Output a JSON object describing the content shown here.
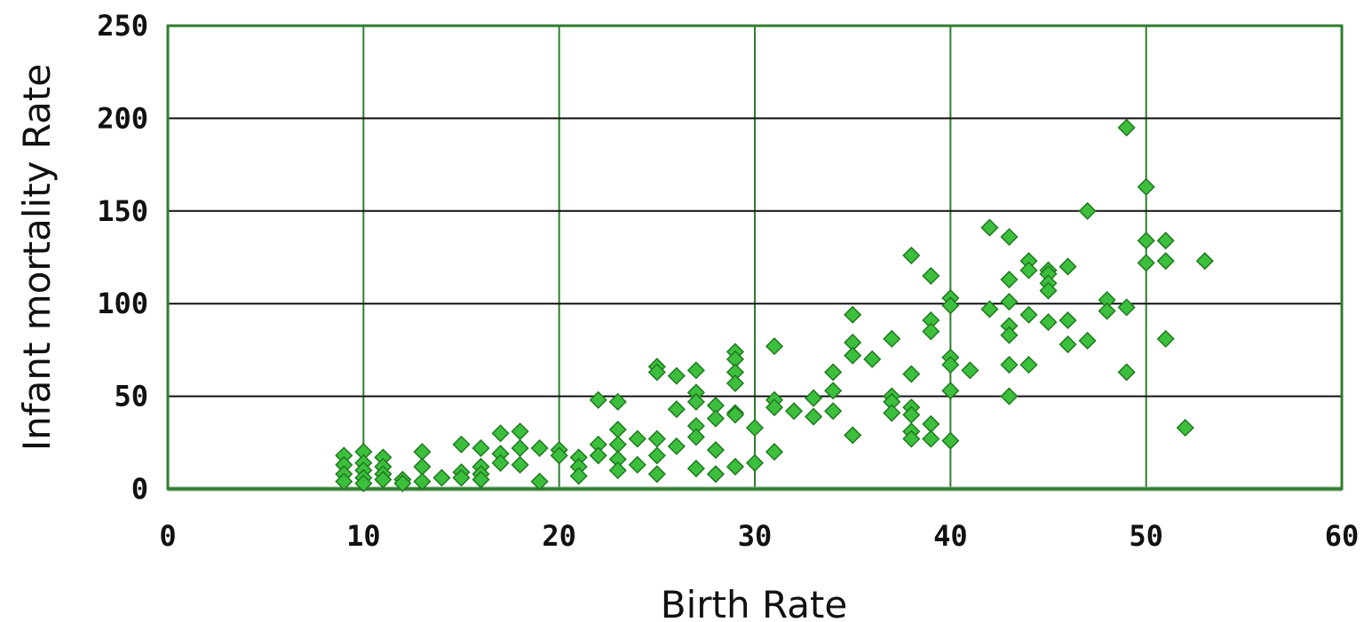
{
  "chart_data": {
    "type": "scatter",
    "title": "",
    "xlabel": "Birth Rate",
    "ylabel": "Infant mortality Rate",
    "xlim": [
      0,
      60
    ],
    "ylim": [
      0,
      250
    ],
    "x_ticks": [
      0,
      10,
      20,
      30,
      40,
      50,
      60
    ],
    "y_ticks": [
      0,
      50,
      100,
      150,
      200,
      250
    ],
    "grid": true,
    "legend": "none",
    "colors": {
      "marker_fill": "#3cbf3c",
      "marker_stroke": "#1f7a1f",
      "grid_vertical": "#2e7d2e",
      "grid_horizontal": "#111111",
      "frame": "#2e7d2e"
    },
    "series": [
      {
        "points": [
          [
            9,
            18
          ],
          [
            9,
            13
          ],
          [
            9,
            8
          ],
          [
            9,
            4
          ],
          [
            10,
            20
          ],
          [
            10,
            14
          ],
          [
            10,
            10
          ],
          [
            10,
            6
          ],
          [
            10,
            3
          ],
          [
            11,
            17
          ],
          [
            11,
            12
          ],
          [
            11,
            8
          ],
          [
            11,
            5
          ],
          [
            12,
            5
          ],
          [
            12,
            3
          ],
          [
            13,
            20
          ],
          [
            13,
            12
          ],
          [
            13,
            4
          ],
          [
            14,
            6
          ],
          [
            15,
            24
          ],
          [
            15,
            9
          ],
          [
            15,
            6
          ],
          [
            16,
            22
          ],
          [
            16,
            12
          ],
          [
            16,
            8
          ],
          [
            16,
            5
          ],
          [
            17,
            30
          ],
          [
            17,
            19
          ],
          [
            17,
            14
          ],
          [
            18,
            31
          ],
          [
            18,
            22
          ],
          [
            18,
            13
          ],
          [
            19,
            22
          ],
          [
            19,
            4
          ],
          [
            20,
            21
          ],
          [
            20,
            18
          ],
          [
            21,
            17
          ],
          [
            21,
            12
          ],
          [
            21,
            7
          ],
          [
            22,
            48
          ],
          [
            22,
            24
          ],
          [
            22,
            18
          ],
          [
            23,
            47
          ],
          [
            23,
            32
          ],
          [
            23,
            24
          ],
          [
            23,
            16
          ],
          [
            23,
            10
          ],
          [
            24,
            27
          ],
          [
            24,
            13
          ],
          [
            25,
            66
          ],
          [
            25,
            63
          ],
          [
            25,
            27
          ],
          [
            25,
            18
          ],
          [
            25,
            8
          ],
          [
            26,
            61
          ],
          [
            26,
            43
          ],
          [
            26,
            23
          ],
          [
            27,
            64
          ],
          [
            27,
            52
          ],
          [
            27,
            47
          ],
          [
            27,
            34
          ],
          [
            27,
            28
          ],
          [
            27,
            11
          ],
          [
            28,
            45
          ],
          [
            28,
            38
          ],
          [
            28,
            21
          ],
          [
            28,
            8
          ],
          [
            29,
            74
          ],
          [
            29,
            70
          ],
          [
            29,
            63
          ],
          [
            29,
            57
          ],
          [
            29,
            41
          ],
          [
            29,
            40
          ],
          [
            29,
            12
          ],
          [
            30,
            33
          ],
          [
            30,
            14
          ],
          [
            31,
            77
          ],
          [
            31,
            48
          ],
          [
            31,
            44
          ],
          [
            31,
            20
          ],
          [
            32,
            42
          ],
          [
            33,
            49
          ],
          [
            33,
            39
          ],
          [
            34,
            63
          ],
          [
            34,
            53
          ],
          [
            34,
            42
          ],
          [
            35,
            94
          ],
          [
            35,
            79
          ],
          [
            35,
            72
          ],
          [
            35,
            29
          ],
          [
            36,
            70
          ],
          [
            37,
            81
          ],
          [
            37,
            50
          ],
          [
            37,
            47
          ],
          [
            37,
            41
          ],
          [
            38,
            126
          ],
          [
            38,
            62
          ],
          [
            38,
            44
          ],
          [
            38,
            40
          ],
          [
            38,
            31
          ],
          [
            38,
            27
          ],
          [
            39,
            115
          ],
          [
            39,
            91
          ],
          [
            39,
            85
          ],
          [
            39,
            35
          ],
          [
            39,
            27
          ],
          [
            40,
            103
          ],
          [
            40,
            99
          ],
          [
            40,
            71
          ],
          [
            40,
            67
          ],
          [
            40,
            53
          ],
          [
            40,
            26
          ],
          [
            41,
            64
          ],
          [
            42,
            141
          ],
          [
            42,
            97
          ],
          [
            43,
            136
          ],
          [
            43,
            113
          ],
          [
            43,
            101
          ],
          [
            43,
            88
          ],
          [
            43,
            83
          ],
          [
            43,
            67
          ],
          [
            43,
            50
          ],
          [
            44,
            123
          ],
          [
            44,
            118
          ],
          [
            44,
            94
          ],
          [
            44,
            67
          ],
          [
            45,
            118
          ],
          [
            45,
            116
          ],
          [
            45,
            111
          ],
          [
            45,
            107
          ],
          [
            45,
            90
          ],
          [
            46,
            120
          ],
          [
            46,
            91
          ],
          [
            46,
            78
          ],
          [
            47,
            150
          ],
          [
            47,
            80
          ],
          [
            48,
            102
          ],
          [
            48,
            96
          ],
          [
            49,
            195
          ],
          [
            49,
            98
          ],
          [
            49,
            63
          ],
          [
            50,
            163
          ],
          [
            50,
            134
          ],
          [
            50,
            122
          ],
          [
            51,
            134
          ],
          [
            51,
            123
          ],
          [
            51,
            81
          ],
          [
            52,
            33
          ],
          [
            53,
            123
          ]
        ]
      }
    ]
  }
}
